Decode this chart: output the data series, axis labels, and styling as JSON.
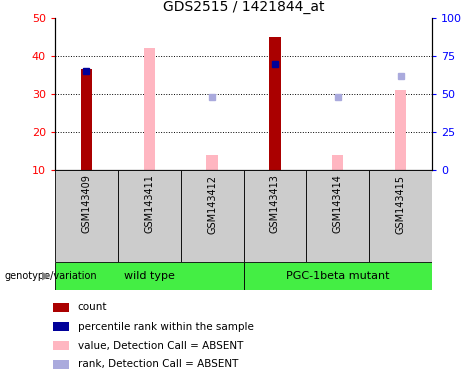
{
  "title": "GDS2515 / 1421844_at",
  "samples": [
    "GSM143409",
    "GSM143411",
    "GSM143412",
    "GSM143413",
    "GSM143414",
    "GSM143415"
  ],
  "count_present_indices": [
    0,
    3
  ],
  "count_present_values": [
    36.5,
    45.0
  ],
  "rank_present_indices": [
    0,
    3
  ],
  "rank_present_values": [
    65.0,
    70.0
  ],
  "value_absent_indices": [
    1,
    2,
    4,
    5
  ],
  "value_absent_values": [
    42.0,
    14.0,
    14.0,
    31.0
  ],
  "rank_absent_indices": [
    2,
    4,
    5
  ],
  "rank_absent_values": [
    48.0,
    48.0,
    62.0
  ],
  "ylim_left": [
    10,
    50
  ],
  "ylim_right": [
    0,
    100
  ],
  "yticks_left": [
    10,
    20,
    30,
    40,
    50
  ],
  "yticks_right": [
    0,
    25,
    50,
    75,
    100
  ],
  "ytick_right_labels": [
    "0",
    "25",
    "50",
    "75",
    "100%"
  ],
  "bar_width": 0.18,
  "color_count": "#AA0000",
  "color_rank": "#000099",
  "color_value_absent": "#FFB6C1",
  "color_rank_absent": "#AAAADD",
  "label_area_color": "#CCCCCC",
  "group_area_color": "#44EE44",
  "background_color": "#FFFFFF",
  "legend_items": [
    {
      "label": "count",
      "color": "#AA0000",
      "marker": "s"
    },
    {
      "label": "percentile rank within the sample",
      "color": "#000099",
      "marker": "s"
    },
    {
      "label": "value, Detection Call = ABSENT",
      "color": "#FFB6C1",
      "marker": "s"
    },
    {
      "label": "rank, Detection Call = ABSENT",
      "color": "#AAAADD",
      "marker": "s"
    }
  ]
}
